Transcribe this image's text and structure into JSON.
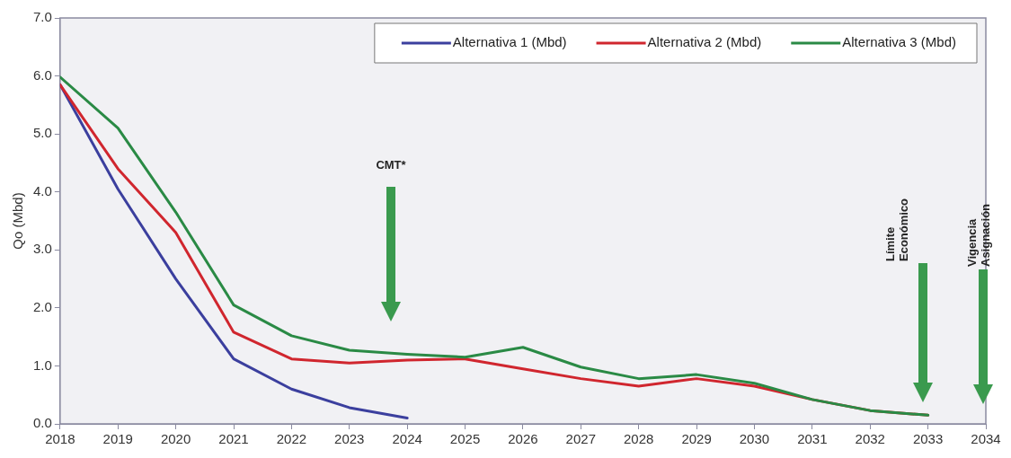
{
  "chart_data": {
    "type": "line",
    "ylabel": "Qo (Mbd)",
    "x": [
      2018,
      2019,
      2020,
      2021,
      2022,
      2023,
      2024,
      2025,
      2026,
      2027,
      2028,
      2029,
      2030,
      2031,
      2032,
      2033
    ],
    "series": [
      {
        "name": "Alternativa 1 (Mbd)",
        "color": "#3b3f9e",
        "values": [
          5.85,
          4.05,
          2.5,
          1.12,
          0.6,
          0.28,
          0.1,
          null,
          null,
          null,
          null,
          null,
          null,
          null,
          null,
          null
        ]
      },
      {
        "name": "Alternativa 2 (Mbd)",
        "color": "#d0262e",
        "values": [
          5.85,
          4.4,
          3.3,
          1.58,
          1.12,
          1.05,
          1.1,
          1.12,
          0.95,
          0.78,
          0.65,
          0.78,
          0.65,
          0.42,
          0.23,
          0.15
        ]
      },
      {
        "name": "Alternativa 3 (Mbd)",
        "color": "#2a8a45",
        "values": [
          5.98,
          5.1,
          3.65,
          2.05,
          1.52,
          1.27,
          1.2,
          1.15,
          1.32,
          0.98,
          0.78,
          0.85,
          0.7,
          0.42,
          0.23,
          0.15
        ]
      }
    ],
    "xlim": [
      2018,
      2034
    ],
    "xticks": [
      2018,
      2019,
      2020,
      2021,
      2022,
      2023,
      2024,
      2025,
      2026,
      2027,
      2028,
      2029,
      2030,
      2031,
      2032,
      2033,
      2034
    ],
    "ylim": [
      0,
      7
    ],
    "yticks": [
      {
        "value": 0,
        "label": "0.0"
      },
      {
        "value": 1,
        "label": "1.0"
      },
      {
        "value": 2,
        "label": "2.0"
      },
      {
        "value": 3,
        "label": "3.0"
      },
      {
        "value": 4,
        "label": "4.0"
      },
      {
        "value": 5,
        "label": "5.0"
      },
      {
        "value": 6,
        "label": "6.0"
      },
      {
        "value": 7,
        "label": "7.0"
      }
    ],
    "grid": false,
    "legend": "top right",
    "marker": "none",
    "line_style": "solid",
    "annotations": [
      "CMT*",
      "Límite\nEconómico",
      "Vigencia\nAsignación"
    ]
  }
}
